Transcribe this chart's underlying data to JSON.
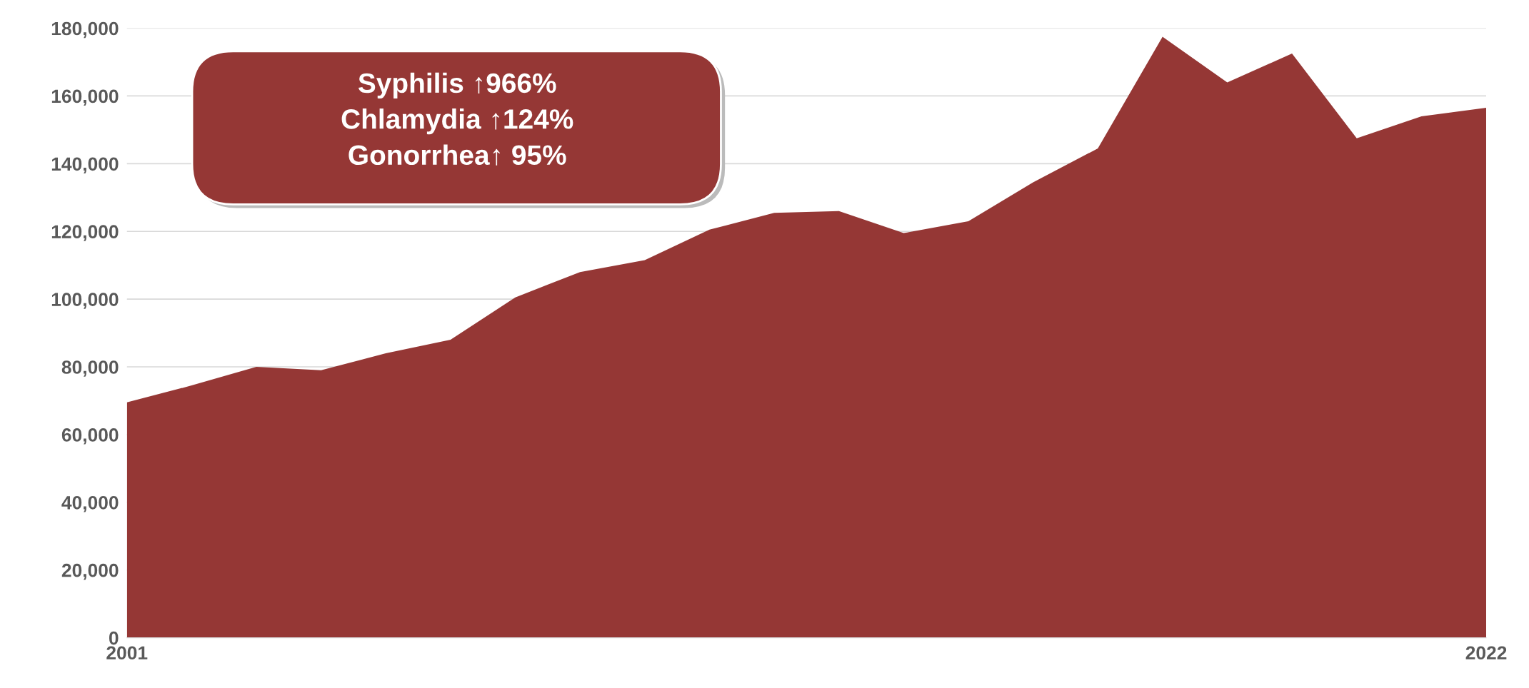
{
  "chart_data": {
    "type": "area",
    "x": [
      2001,
      2002,
      2003,
      2004,
      2005,
      2006,
      2007,
      2008,
      2009,
      2010,
      2011,
      2012,
      2013,
      2014,
      2015,
      2016,
      2017,
      2018,
      2019,
      2020,
      2021,
      2022
    ],
    "series": [
      {
        "color": "#953735",
        "values": [
          69500,
          74500,
          80000,
          79000,
          84000,
          88000,
          100500,
          108000,
          111500,
          120500,
          125500,
          126000,
          119500,
          123000,
          134500,
          144500,
          177500,
          164000,
          172500,
          147500,
          154000,
          156500
        ]
      }
    ],
    "xlim": [
      2001,
      2022
    ],
    "xticks": [
      2001,
      2022
    ],
    "ylim": [
      0,
      180000
    ],
    "yticks": [
      {
        "value": 0,
        "label": "0"
      },
      {
        "value": 20000,
        "label": "20,000"
      },
      {
        "value": 40000,
        "label": "40,000"
      },
      {
        "value": 60000,
        "label": "60,000"
      },
      {
        "value": 80000,
        "label": "80,000"
      },
      {
        "value": 100000,
        "label": "100,000"
      },
      {
        "value": 120000,
        "label": "120,000"
      },
      {
        "value": 140000,
        "label": "140,000"
      },
      {
        "value": 160000,
        "label": "160,000"
      },
      {
        "value": 180000,
        "label": "180,000"
      }
    ],
    "grid": "y",
    "legend": false,
    "annotations": [
      "Syphilis ↑966%",
      "Chlamydia ↑124%",
      "Gonorrhea↑ 95%"
    ]
  }
}
